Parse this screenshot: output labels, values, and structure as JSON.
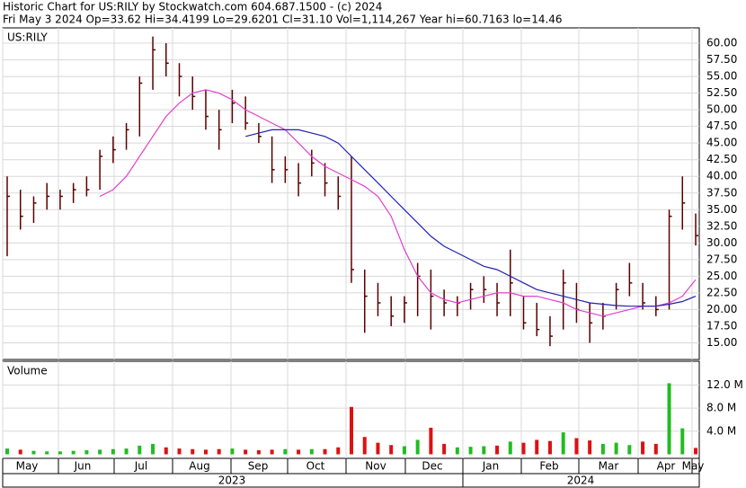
{
  "chart_data": [
    {
      "type": "ohlc",
      "title": "Historic Chart for US:RILY by Stockwatch.com 604.687.1500 - (c) 2024",
      "subtitle": "Fri May  3 2024  Op=33.62  Hi=34.4199  Lo=29.6201  Cl=31.10  Vol=1,114,267  Year hi=60.7163  lo=14.46",
      "symbol": "US:RILY",
      "color": "#5a0000",
      "ylim": [
        12.5,
        62.3
      ],
      "yticks": [
        {
          "value": 15,
          "label": "15.00"
        },
        {
          "value": 17.5,
          "label": "17.50"
        },
        {
          "value": 20,
          "label": "20.00"
        },
        {
          "value": 22.5,
          "label": "22.50"
        },
        {
          "value": 25,
          "label": "25.00"
        },
        {
          "value": 27.5,
          "label": "27.50"
        },
        {
          "value": 30,
          "label": "30.00"
        },
        {
          "value": 32.5,
          "label": "32.50"
        },
        {
          "value": 35,
          "label": "35.00"
        },
        {
          "value": 37.5,
          "label": "37.50"
        },
        {
          "value": 40,
          "label": "40.00"
        },
        {
          "value": 42.5,
          "label": "42.50"
        },
        {
          "value": 45,
          "label": "45.00"
        },
        {
          "value": 47.5,
          "label": "47.50"
        },
        {
          "value": 50,
          "label": "50.00"
        },
        {
          "value": 52.5,
          "label": "52.50"
        },
        {
          "value": 55,
          "label": "55.00"
        },
        {
          "value": 57.5,
          "label": "57.50"
        },
        {
          "value": 60,
          "label": "60.00"
        }
      ],
      "grid": true,
      "high": [
        40,
        38,
        37,
        39,
        38,
        39,
        40,
        44,
        46,
        48,
        55,
        61,
        60,
        57,
        55,
        53,
        50,
        53,
        52,
        48,
        46,
        43,
        42,
        44,
        42,
        40,
        43,
        26,
        24,
        22,
        22,
        27,
        26,
        23,
        22,
        24,
        25,
        24,
        29,
        22,
        21,
        19,
        26,
        24,
        21,
        21,
        24,
        27,
        24,
        22,
        35,
        40,
        34.4199
      ],
      "low": [
        28,
        32,
        33,
        35,
        35,
        36,
        37,
        38,
        42,
        44,
        46,
        53,
        55,
        52,
        50,
        47,
        44,
        48,
        47,
        45,
        39,
        39,
        37,
        40,
        37,
        35,
        24,
        16.5,
        19,
        17.5,
        18,
        19,
        17,
        19,
        19,
        20,
        21,
        19,
        19,
        17,
        16,
        14.5,
        17,
        18,
        15,
        17,
        20,
        22,
        20,
        19,
        20,
        32,
        29.6201
      ],
      "close": [
        37,
        34,
        36,
        37,
        37,
        38,
        38,
        43,
        44,
        47,
        54,
        59,
        57,
        55,
        52,
        49,
        47,
        51,
        48,
        46,
        41,
        41,
        39,
        42,
        39,
        37,
        26,
        22,
        21,
        19,
        21,
        25,
        22,
        21,
        21,
        23,
        23,
        21,
        24,
        18,
        17,
        16,
        24,
        20,
        18,
        19,
        23,
        24,
        21,
        20,
        34,
        36,
        31.1
      ],
      "series": [
        {
          "color": "#e040d0",
          "values": [
            null,
            null,
            null,
            null,
            null,
            null,
            null,
            37,
            38,
            40,
            43,
            46,
            49,
            51,
            52.5,
            53,
            52.5,
            51.5,
            50,
            49,
            48,
            47,
            45,
            43,
            41.5,
            40.5,
            39.5,
            38.5,
            37,
            34,
            29,
            25,
            22.5,
            21.5,
            21,
            21.5,
            22,
            22.5,
            22.5,
            22,
            22,
            21.5,
            21,
            20,
            19.5,
            19,
            19.5,
            20,
            20.5,
            20.5,
            21,
            22,
            24.5
          ]
        },
        {
          "color": "#2020b0",
          "values": [
            null,
            null,
            null,
            null,
            null,
            null,
            null,
            null,
            null,
            null,
            null,
            null,
            null,
            null,
            null,
            null,
            null,
            null,
            46,
            46.5,
            47,
            47,
            47,
            46.5,
            46,
            45,
            43,
            41,
            39,
            37,
            35,
            33,
            31,
            29.5,
            28.5,
            27.5,
            26.5,
            26,
            25,
            24,
            23,
            22.5,
            22,
            21.5,
            21,
            20.8,
            20.6,
            20.5,
            20.5,
            20.5,
            20.8,
            21.2,
            22
          ]
        }
      ]
    },
    {
      "type": "bar",
      "title": "Volume",
      "up_color": "#22bb22",
      "down_color": "#dd1111",
      "ylim": [
        0,
        16.1
      ],
      "yticks": [
        {
          "value": 4,
          "label": "4.0 M"
        },
        {
          "value": 8,
          "label": "8.0 M"
        },
        {
          "value": 12,
          "label": "12.0 M"
        }
      ],
      "values": [
        1,
        0.8,
        0.6,
        0.5,
        0.5,
        0.6,
        0.7,
        0.8,
        0.9,
        1,
        1.5,
        1.8,
        1.2,
        1,
        0.9,
        0.8,
        0.9,
        1,
        0.8,
        0.7,
        0.8,
        0.9,
        0.8,
        0.9,
        0.9,
        1.2,
        8.2,
        3,
        2,
        1.6,
        1.4,
        2.5,
        4.6,
        1.8,
        1.2,
        1.3,
        1.4,
        1.5,
        2.2,
        2,
        2.5,
        2.3,
        3.8,
        2.8,
        2.4,
        1.8,
        2,
        1.6,
        2.2,
        1.8,
        12.3,
        4.5,
        1.1
      ],
      "months": [
        "May",
        "Jun",
        "Jul",
        "Aug",
        "Sep",
        "Oct",
        "Nov",
        "Dec",
        "Jan",
        "Feb",
        "Mar",
        "Apr",
        "May"
      ],
      "years": [
        "2023",
        "2024"
      ]
    }
  ]
}
